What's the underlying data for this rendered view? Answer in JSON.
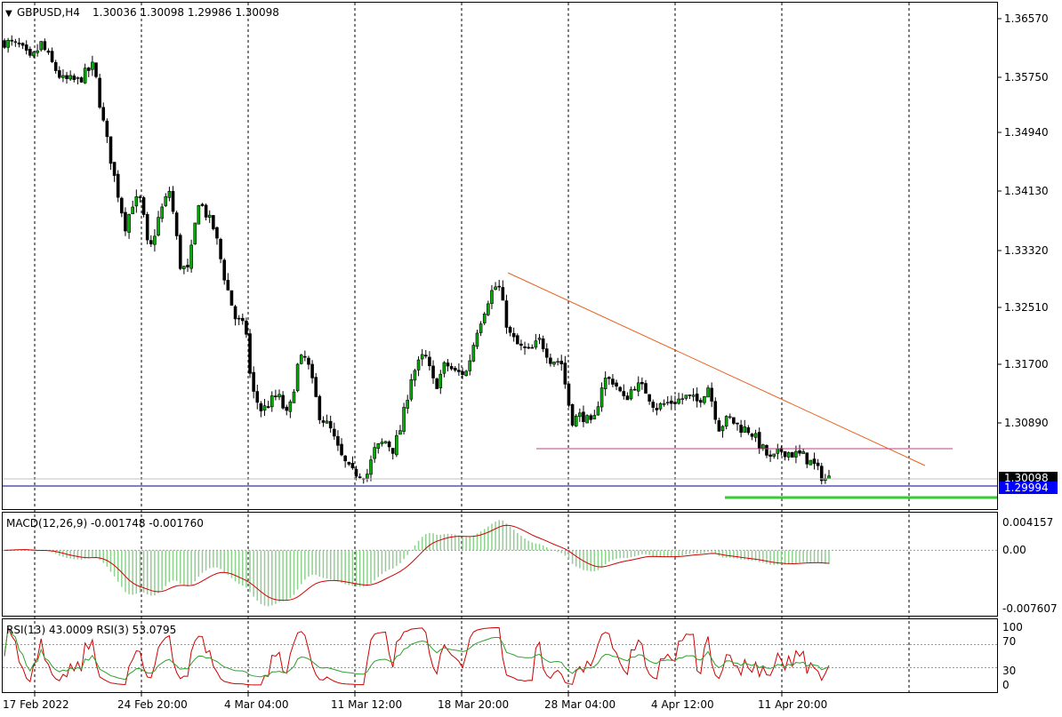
{
  "header": {
    "symbol": "GBPUSD,H4",
    "ohlc": "1.30036 1.30098 1.29986 1.30098"
  },
  "chart_data": {
    "type": "candlestick",
    "y_axis_ticks": [
      "1.36570",
      "1.35750",
      "1.34940",
      "1.34130",
      "1.33320",
      "1.32510",
      "1.31700",
      "1.30890",
      "1.30098",
      "1.29994"
    ],
    "x_axis_ticks": [
      "17 Feb 2022",
      "24 Feb 20:00",
      "4 Mar 04:00",
      "11 Mar 12:00",
      "18 Mar 20:00",
      "28 Mar 04:00",
      "4 Apr 12:00",
      "11 Apr 20:00"
    ],
    "ylim": [
      1.2967,
      1.368
    ],
    "current_price": 1.30098,
    "horizontal_line_price": 1.29994,
    "close_path": [
      [
        0,
        1.3625
      ],
      [
        6,
        1.3618
      ],
      [
        10,
        1.3598
      ],
      [
        14,
        1.3622
      ],
      [
        18,
        1.3595
      ],
      [
        22,
        1.3571
      ],
      [
        28,
        1.357
      ],
      [
        34,
        1.3592
      ],
      [
        37,
        1.3523
      ],
      [
        42,
        1.3432
      ],
      [
        46,
        1.3365
      ],
      [
        49,
        1.34
      ],
      [
        52,
        1.3402
      ],
      [
        55,
        1.3325
      ],
      [
        59,
        1.3381
      ],
      [
        63,
        1.3417
      ],
      [
        67,
        1.331
      ],
      [
        70,
        1.3302
      ],
      [
        74,
        1.3402
      ],
      [
        80,
        1.336
      ],
      [
        84,
        1.329
      ],
      [
        88,
        1.3235
      ],
      [
        92,
        1.322
      ],
      [
        94,
        1.3136
      ],
      [
        98,
        1.3105
      ],
      [
        104,
        1.3128
      ],
      [
        108,
        1.3095
      ],
      [
        112,
        1.3175
      ],
      [
        115,
        1.318
      ],
      [
        120,
        1.31
      ],
      [
        124,
        1.308
      ],
      [
        128,
        1.3042
      ],
      [
        132,
        1.3018
      ],
      [
        135,
        1.3018
      ],
      [
        138,
        1.3015
      ],
      [
        141,
        1.305
      ],
      [
        145,
        1.3063
      ],
      [
        148,
        1.3051
      ],
      [
        151,
        1.3082
      ],
      [
        155,
        1.3155
      ],
      [
        160,
        1.3185
      ],
      [
        164,
        1.3138
      ],
      [
        168,
        1.3172
      ],
      [
        172,
        1.3158
      ],
      [
        176,
        1.316
      ],
      [
        180,
        1.322
      ],
      [
        185,
        1.327
      ],
      [
        188,
        1.3285
      ],
      [
        192,
        1.3215
      ],
      [
        196,
        1.3195
      ],
      [
        200,
        1.3188
      ],
      [
        204,
        1.3205
      ],
      [
        208,
        1.3178
      ],
      [
        212,
        1.3175
      ],
      [
        216,
        1.3092
      ],
      [
        220,
        1.31
      ],
      [
        224,
        1.3082
      ],
      [
        228,
        1.315
      ],
      [
        232,
        1.3148
      ],
      [
        236,
        1.312
      ],
      [
        240,
        1.3142
      ],
      [
        244,
        1.3135
      ],
      [
        248,
        1.311
      ],
      [
        252,
        1.3116
      ],
      [
        256,
        1.312
      ],
      [
        260,
        1.3125
      ],
      [
        264,
        1.3118
      ],
      [
        268,
        1.314
      ],
      [
        272,
        1.3082
      ],
      [
        276,
        1.3095
      ],
      [
        280,
        1.3082
      ],
      [
        284,
        1.3078
      ],
      [
        288,
        1.3055
      ],
      [
        292,
        1.3035
      ],
      [
        296,
        1.305
      ],
      [
        300,
        1.3045
      ],
      [
        304,
        1.3042
      ],
      [
        308,
        1.303
      ],
      [
        312,
        1.301
      ],
      [
        314,
        1.301
      ]
    ],
    "macd": {
      "label": "MACD(12,26,9) -0.001748 -0.001760",
      "y_ticks": [
        "0.004157",
        "0.00",
        "-0.007607"
      ],
      "ylim": [
        -0.0085,
        0.0049
      ]
    },
    "rsi": {
      "label": "RSI(13) 43.0009  RSI(3) 53.0795",
      "y_ticks": [
        "100",
        "70",
        "30",
        "0"
      ],
      "levels": [
        70,
        30
      ]
    },
    "colors": {
      "bull": "#00b000",
      "bear": "#000000",
      "trendline": "#e8601c",
      "resistance": "#c04080",
      "support": "#32cd32",
      "price_line": "#000080",
      "macd_hist": "#8fd08f",
      "macd_signal": "#d00000",
      "rsi13": "#2ea02e",
      "rsi3": "#d00000",
      "badge_dark": "#000000",
      "badge_blue": "#0000ff"
    }
  }
}
